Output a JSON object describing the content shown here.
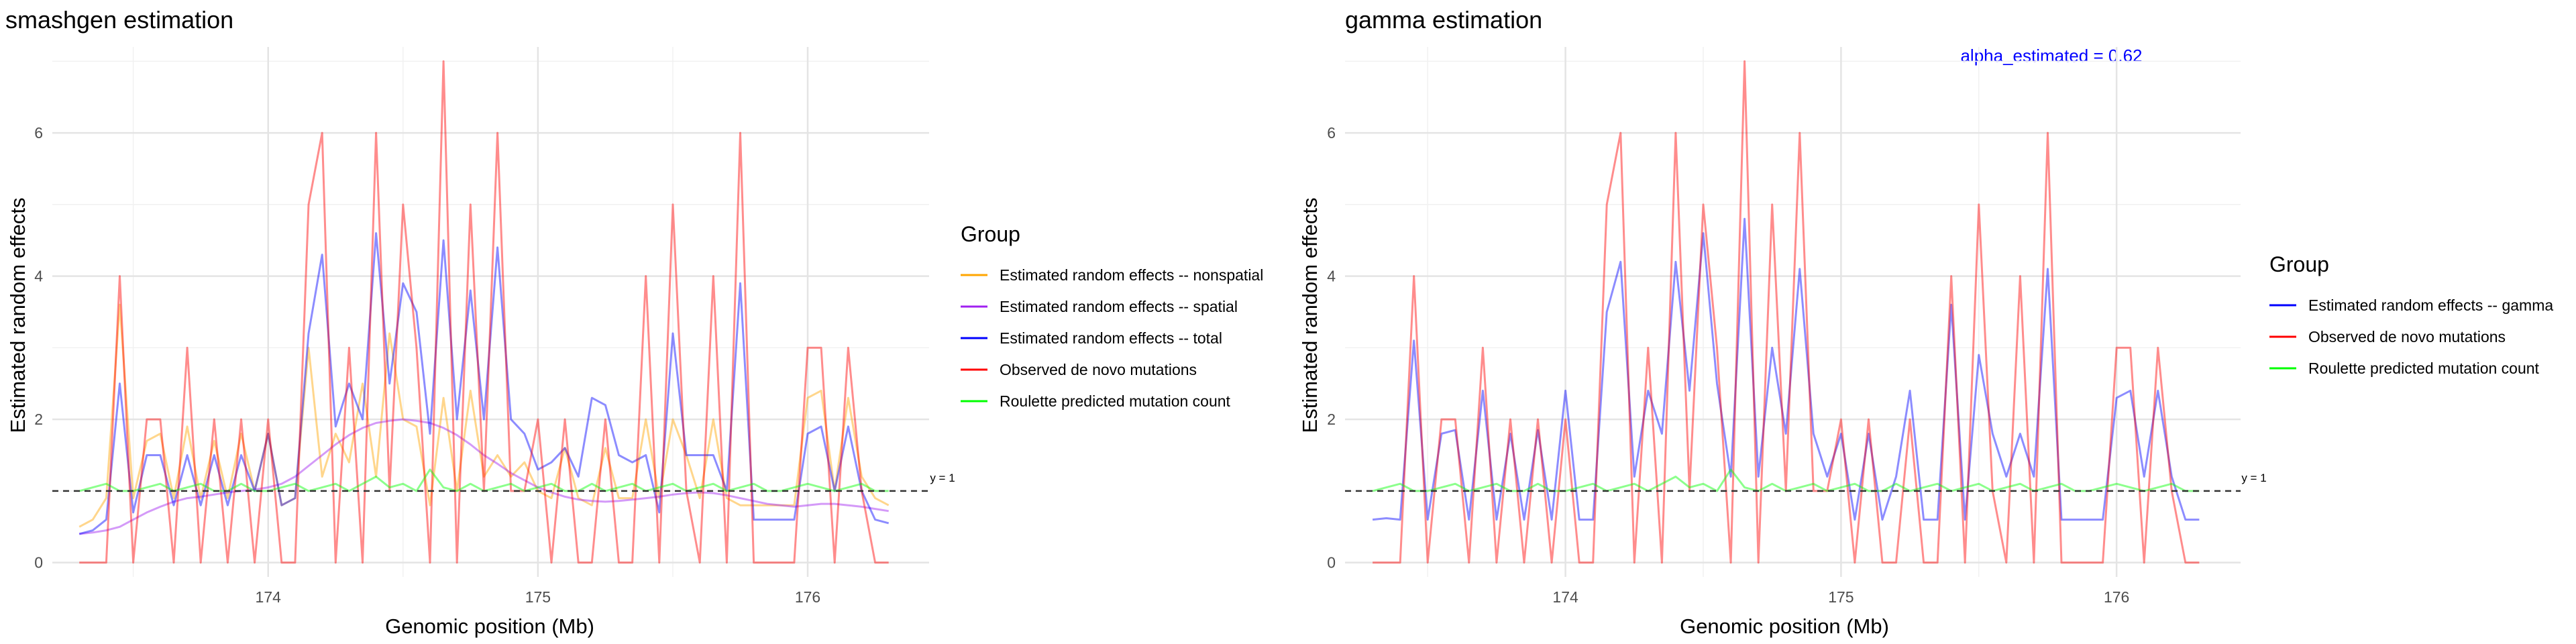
{
  "chart_data": [
    {
      "type": "line",
      "title": "smashgen estimation",
      "xlabel": "Genomic position (Mb)",
      "ylabel": "Estimated random effects",
      "xlim": [
        173.2,
        176.45
      ],
      "ylim": [
        -0.2,
        7.2
      ],
      "xticks": [
        "174",
        "175",
        "176"
      ],
      "yticks": [
        "0",
        "2",
        "4",
        "6"
      ],
      "grid": true,
      "reference_line": {
        "y": 1,
        "label": "y = 1"
      },
      "legend": {
        "title": "Group",
        "placement": "right"
      },
      "x": [
        173.3,
        173.35,
        173.4,
        173.45,
        173.5,
        173.55,
        173.6,
        173.65,
        173.7,
        173.75,
        173.8,
        173.85,
        173.9,
        173.95,
        174.0,
        174.05,
        174.1,
        174.15,
        174.2,
        174.25,
        174.3,
        174.35,
        174.4,
        174.45,
        174.5,
        174.55,
        174.6,
        174.65,
        174.7,
        174.75,
        174.8,
        174.85,
        174.9,
        174.95,
        175.0,
        175.05,
        175.1,
        175.15,
        175.2,
        175.25,
        175.3,
        175.35,
        175.4,
        175.45,
        175.5,
        175.55,
        175.6,
        175.65,
        175.7,
        175.75,
        175.8,
        175.85,
        175.9,
        175.95,
        176.0,
        176.05,
        176.1,
        176.15,
        176.2,
        176.25,
        176.3
      ],
      "series": [
        {
          "name": "Estimated random effects -- nonspatial",
          "color": "#FFA500",
          "values": [
            0.5,
            0.6,
            0.9,
            3.6,
            0.9,
            1.7,
            1.8,
            0.9,
            1.9,
            0.9,
            1.7,
            0.9,
            1.8,
            1.0,
            1.8,
            0.8,
            0.9,
            3.0,
            1.2,
            1.8,
            1.4,
            2.5,
            1.2,
            3.2,
            2.0,
            1.9,
            0.8,
            2.3,
            1.0,
            2.4,
            1.2,
            1.5,
            1.2,
            1.4,
            1.0,
            0.9,
            1.6,
            0.9,
            0.8,
            1.6,
            0.9,
            0.9,
            2.0,
            0.9,
            2.0,
            1.5,
            0.9,
            2.0,
            0.9,
            0.8,
            0.8,
            0.8,
            0.8,
            0.8,
            2.3,
            2.4,
            1.0,
            2.3,
            1.2,
            0.9,
            0.8
          ]
        },
        {
          "name": "Estimated random effects -- spatial",
          "color": "#A020F0",
          "values": [
            0.4,
            0.42,
            0.45,
            0.5,
            0.6,
            0.7,
            0.78,
            0.85,
            0.9,
            0.92,
            0.95,
            0.98,
            1.0,
            1.02,
            1.05,
            1.1,
            1.2,
            1.35,
            1.5,
            1.65,
            1.78,
            1.88,
            1.95,
            1.98,
            2.0,
            1.98,
            1.95,
            1.88,
            1.78,
            1.65,
            1.5,
            1.38,
            1.25,
            1.15,
            1.05,
            0.98,
            0.92,
            0.88,
            0.86,
            0.85,
            0.86,
            0.88,
            0.9,
            0.92,
            0.95,
            0.97,
            0.98,
            0.97,
            0.94,
            0.9,
            0.86,
            0.82,
            0.8,
            0.78,
            0.8,
            0.82,
            0.82,
            0.8,
            0.78,
            0.75,
            0.72
          ]
        },
        {
          "name": "Estimated random effects -- total",
          "color": "#0000FF",
          "values": [
            0.4,
            0.45,
            0.6,
            2.5,
            0.7,
            1.5,
            1.5,
            0.8,
            1.5,
            0.8,
            1.5,
            0.8,
            1.5,
            1.0,
            1.8,
            0.8,
            0.9,
            3.2,
            4.3,
            1.9,
            2.5,
            2.0,
            4.6,
            2.5,
            3.9,
            3.5,
            1.8,
            4.5,
            2.0,
            3.8,
            2.0,
            4.4,
            2.0,
            1.8,
            1.3,
            1.4,
            1.6,
            1.2,
            2.3,
            2.2,
            1.5,
            1.4,
            1.5,
            0.7,
            3.2,
            1.5,
            1.5,
            1.5,
            1.0,
            3.9,
            0.6,
            0.6,
            0.6,
            0.6,
            1.8,
            1.9,
            1.0,
            1.9,
            1.0,
            0.6,
            0.55
          ]
        },
        {
          "name": "Observed de novo mutations",
          "color": "#FF0000",
          "values": [
            0,
            0,
            0,
            4,
            0,
            2,
            2,
            0,
            3,
            0,
            2,
            0,
            2,
            0,
            2,
            0,
            0,
            5,
            6,
            0,
            3,
            0,
            6,
            1,
            5,
            3,
            0,
            7,
            0,
            5,
            1,
            6,
            1,
            1,
            2,
            0,
            2,
            0,
            0,
            2,
            0,
            0,
            4,
            0,
            5,
            1,
            0,
            4,
            0,
            6,
            0,
            0,
            0,
            0,
            3,
            3,
            0,
            3,
            1,
            0,
            0
          ]
        },
        {
          "name": "Roulette predicted mutation count",
          "color": "#00FF00",
          "values": [
            1.0,
            1.05,
            1.1,
            1.0,
            1.0,
            1.05,
            1.1,
            1.0,
            1.05,
            1.1,
            1.0,
            1.0,
            1.1,
            1.0,
            1.0,
            1.05,
            1.1,
            1.0,
            1.05,
            1.1,
            1.0,
            1.1,
            1.2,
            1.05,
            1.1,
            1.0,
            1.3,
            1.05,
            1.0,
            1.1,
            1.0,
            1.05,
            1.1,
            1.0,
            1.05,
            1.1,
            1.0,
            1.0,
            1.1,
            1.0,
            1.05,
            1.1,
            1.0,
            1.05,
            1.1,
            1.0,
            1.05,
            1.1,
            1.0,
            1.05,
            1.1,
            1.0,
            1.0,
            1.05,
            1.1,
            1.05,
            1.0,
            1.05,
            1.1,
            1.0,
            1.0
          ]
        }
      ]
    },
    {
      "type": "line",
      "title": "gamma estimation",
      "annotation": "alpha_estimated = 0.62",
      "xlabel": "Genomic position (Mb)",
      "ylabel": "Estimated random effects",
      "xlim": [
        173.2,
        176.45
      ],
      "ylim": [
        -0.2,
        7.2
      ],
      "xticks": [
        "174",
        "175",
        "176"
      ],
      "yticks": [
        "0",
        "2",
        "4",
        "6"
      ],
      "grid": true,
      "reference_line": {
        "y": 1,
        "label": "y = 1"
      },
      "legend": {
        "title": "Group",
        "placement": "right"
      },
      "x": [
        173.3,
        173.35,
        173.4,
        173.45,
        173.5,
        173.55,
        173.6,
        173.65,
        173.7,
        173.75,
        173.8,
        173.85,
        173.9,
        173.95,
        174.0,
        174.05,
        174.1,
        174.15,
        174.2,
        174.25,
        174.3,
        174.35,
        174.4,
        174.45,
        174.5,
        174.55,
        174.6,
        174.65,
        174.7,
        174.75,
        174.8,
        174.85,
        174.9,
        174.95,
        175.0,
        175.05,
        175.1,
        175.15,
        175.2,
        175.25,
        175.3,
        175.35,
        175.4,
        175.45,
        175.5,
        175.55,
        175.6,
        175.65,
        175.7,
        175.75,
        175.8,
        175.85,
        175.9,
        175.95,
        176.0,
        176.05,
        176.1,
        176.15,
        176.2,
        176.25,
        176.3
      ],
      "series": [
        {
          "name": "Estimated random effects -- gamma",
          "color": "#0000FF",
          "values": [
            0.6,
            0.62,
            0.6,
            3.1,
            0.6,
            1.8,
            1.85,
            0.6,
            2.4,
            0.6,
            1.8,
            0.6,
            1.85,
            0.6,
            2.4,
            0.6,
            0.6,
            3.5,
            4.2,
            1.2,
            2.4,
            1.8,
            4.2,
            2.4,
            4.6,
            2.5,
            1.2,
            4.8,
            1.2,
            3.0,
            1.8,
            4.1,
            1.8,
            1.2,
            1.8,
            0.6,
            1.8,
            0.6,
            1.2,
            2.4,
            0.6,
            0.6,
            3.6,
            0.6,
            2.9,
            1.8,
            1.2,
            1.8,
            1.2,
            4.1,
            0.6,
            0.6,
            0.6,
            0.6,
            2.3,
            2.4,
            1.2,
            2.4,
            1.2,
            0.6,
            0.6
          ]
        },
        {
          "name": "Observed de novo mutations",
          "color": "#FF0000",
          "values": [
            0,
            0,
            0,
            4,
            0,
            2,
            2,
            0,
            3,
            0,
            2,
            0,
            2,
            0,
            2,
            0,
            0,
            5,
            6,
            0,
            3,
            0,
            6,
            1,
            5,
            3,
            0,
            7,
            0,
            5,
            1,
            6,
            1,
            1,
            2,
            0,
            2,
            0,
            0,
            2,
            0,
            0,
            4,
            0,
            5,
            1,
            0,
            4,
            0,
            6,
            0,
            0,
            0,
            0,
            3,
            3,
            0,
            3,
            1,
            0,
            0
          ]
        },
        {
          "name": "Roulette predicted mutation count",
          "color": "#00FF00",
          "values": [
            1.0,
            1.05,
            1.1,
            1.0,
            1.0,
            1.05,
            1.1,
            1.0,
            1.05,
            1.1,
            1.0,
            1.0,
            1.1,
            1.0,
            1.0,
            1.05,
            1.1,
            1.0,
            1.05,
            1.1,
            1.0,
            1.1,
            1.2,
            1.05,
            1.1,
            1.0,
            1.3,
            1.05,
            1.0,
            1.1,
            1.0,
            1.05,
            1.1,
            1.0,
            1.05,
            1.1,
            1.0,
            1.0,
            1.1,
            1.0,
            1.05,
            1.1,
            1.0,
            1.05,
            1.1,
            1.0,
            1.05,
            1.1,
            1.0,
            1.05,
            1.1,
            1.0,
            1.0,
            1.05,
            1.1,
            1.05,
            1.0,
            1.05,
            1.1,
            1.0,
            1.0
          ]
        }
      ]
    }
  ]
}
